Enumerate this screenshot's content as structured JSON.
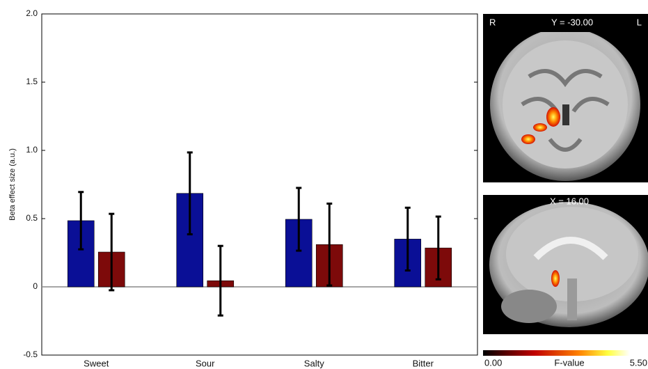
{
  "chart_data": {
    "type": "bar",
    "y_label": "Beta effect size (a.u.)",
    "categories": [
      "Sweet",
      "Sour",
      "Salty",
      "Bitter"
    ],
    "series": [
      {
        "color": "#0a0f96",
        "values": [
          0.485,
          0.685,
          0.495,
          0.35
        ],
        "errors": [
          0.21,
          0.3,
          0.23,
          0.23
        ]
      },
      {
        "color": "#7d0a0a",
        "values": [
          0.255,
          0.045,
          0.31,
          0.285
        ],
        "errors": [
          0.28,
          0.255,
          0.3,
          0.23
        ]
      }
    ],
    "ylim": [
      -0.5,
      2.0
    ],
    "yticks": [
      -0.5,
      0,
      0.5,
      {
        "value": 1,
        "label": "1.0"
      },
      1.5,
      {
        "value": 2,
        "label": "2.0"
      }
    ]
  },
  "brain_panels": {
    "coronal": {
      "left": "R",
      "title": "Y = -30.00",
      "right": "L"
    },
    "sagittal": {
      "title": "X = 16.00"
    },
    "colorbar": {
      "min": "0.00",
      "label": "F-value",
      "max": "5.50"
    }
  }
}
